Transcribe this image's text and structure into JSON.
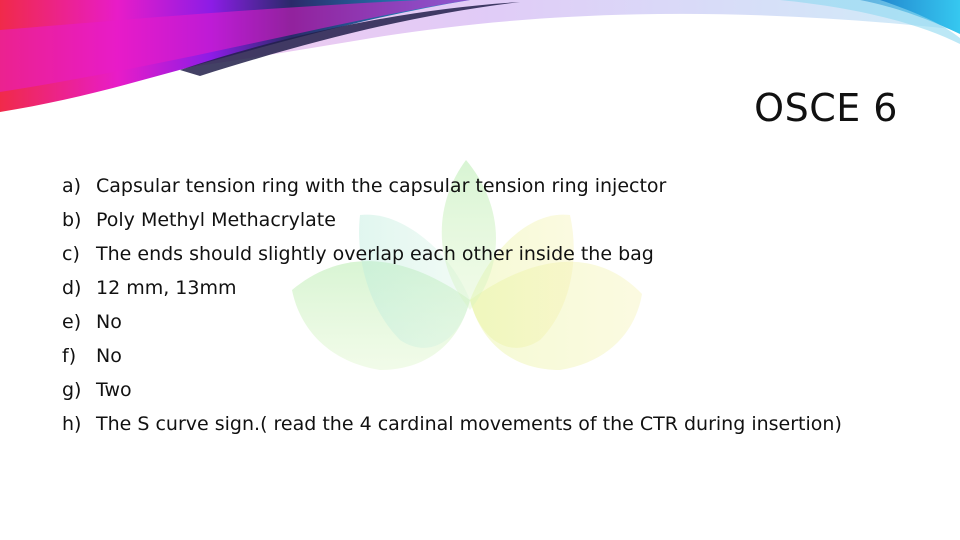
{
  "slide": {
    "title": "OSCE 6",
    "colors": {
      "ribbon_magenta": "#e81cc8",
      "ribbon_red": "#f02a4a",
      "ribbon_purple": "#8c1ce6",
      "ribbon_blue": "#1ea3d8",
      "ribbon_cyan": "#36c8f0",
      "watermark_green": "#c8f0b4",
      "watermark_yellow": "#f0f0a0",
      "watermark_aqua": "#c8f0e8"
    },
    "watermark": "lotus-icon",
    "answers": [
      {
        "marker": "a)",
        "text": "Capsular tension ring with the capsular tension ring injector"
      },
      {
        "marker": "b)",
        "text": "Poly Methyl Methacrylate"
      },
      {
        "marker": "c)",
        "text": "The ends should slightly overlap each other inside the bag"
      },
      {
        "marker": "d)",
        "text": "12 mm, 13mm"
      },
      {
        "marker": "e)",
        "text": "No"
      },
      {
        "marker": "f)",
        "text": "No"
      },
      {
        "marker": "g)",
        "text": "Two"
      },
      {
        "marker": "h)",
        "text": "The S curve sign.( read the 4 cardinal movements of the CTR during insertion)"
      }
    ]
  }
}
